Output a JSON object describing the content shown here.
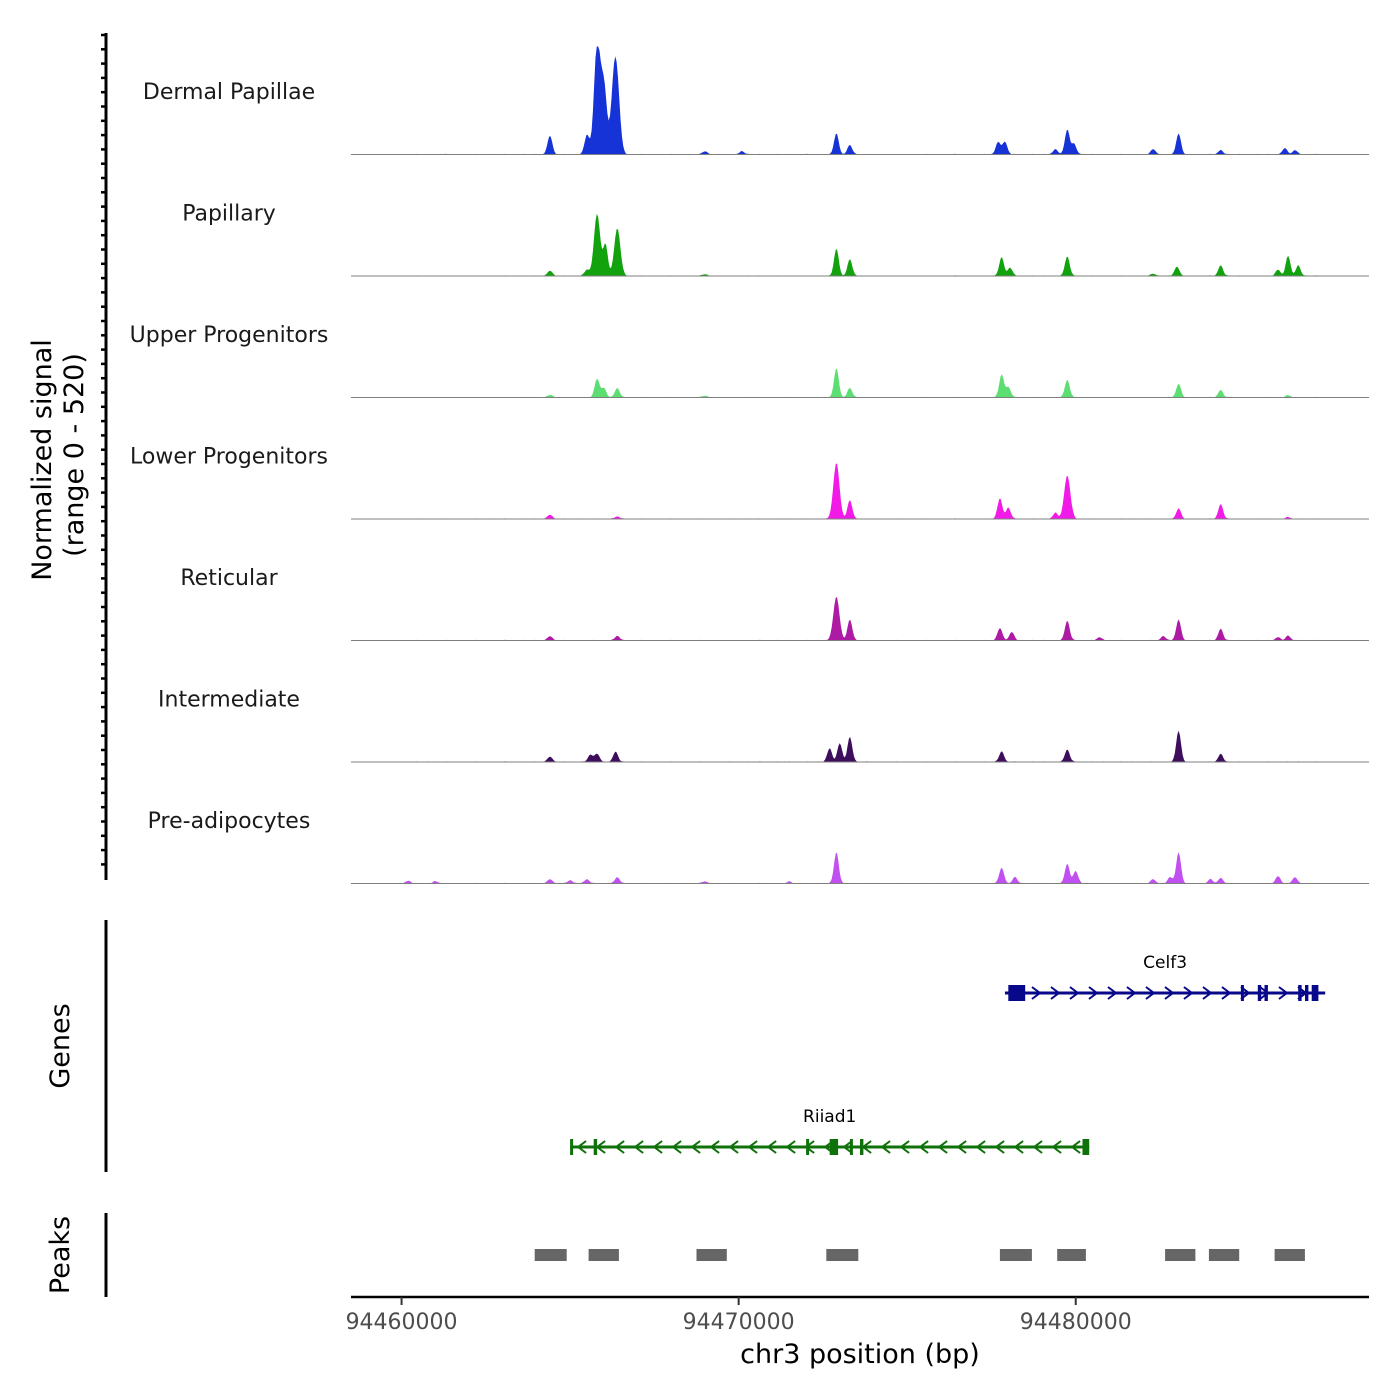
{
  "chart_data": {
    "type": "area",
    "title": "",
    "xlabel": "chr3 position (bp)",
    "ylabel_line1": "Normalized signal",
    "ylabel_line2": "(range 0 - 520)",
    "y_range": [
      0,
      520
    ],
    "xlim": [
      94458500,
      94488700
    ],
    "x_ticks": [
      94460000,
      94470000,
      94480000
    ],
    "x_tick_labels": [
      "94460000",
      "94470000",
      "94480000"
    ],
    "signal_start": 94460000,
    "signal_end": 94487400,
    "series": [
      {
        "name": "Dermal Papillae",
        "color": "#1533d6",
        "peaks": [
          [
            94464400,
            90
          ],
          [
            94465500,
            95
          ],
          [
            94465800,
            520
          ],
          [
            94466000,
            330
          ],
          [
            94466300,
            300
          ],
          [
            94466400,
            250
          ],
          [
            94469000,
            15
          ],
          [
            94470100,
            15
          ],
          [
            94472900,
            100
          ],
          [
            94473300,
            45
          ],
          [
            94477700,
            60
          ],
          [
            94477900,
            60
          ],
          [
            94479400,
            25
          ],
          [
            94479750,
            120
          ],
          [
            94479950,
            50
          ],
          [
            94482300,
            25
          ],
          [
            94483050,
            100
          ],
          [
            94484300,
            20
          ],
          [
            94486200,
            30
          ],
          [
            94486500,
            20
          ]
        ]
      },
      {
        "name": "Papillary",
        "color": "#12a20e",
        "peaks": [
          [
            94464400,
            25
          ],
          [
            94465500,
            30
          ],
          [
            94465800,
            300
          ],
          [
            94466050,
            150
          ],
          [
            94466400,
            230
          ],
          [
            94469000,
            8
          ],
          [
            94472900,
            130
          ],
          [
            94473300,
            80
          ],
          [
            94477800,
            90
          ],
          [
            94478050,
            40
          ],
          [
            94479750,
            95
          ],
          [
            94482300,
            10
          ],
          [
            94483000,
            45
          ],
          [
            94484300,
            50
          ],
          [
            94486000,
            30
          ],
          [
            94486300,
            95
          ],
          [
            94486600,
            50
          ]
        ]
      },
      {
        "name": "Upper Progenitors",
        "color": "#5cde72",
        "peaks": [
          [
            94464400,
            12
          ],
          [
            94465800,
            90
          ],
          [
            94466000,
            45
          ],
          [
            94466400,
            45
          ],
          [
            94469000,
            8
          ],
          [
            94472900,
            140
          ],
          [
            94473300,
            45
          ],
          [
            94477800,
            110
          ],
          [
            94478000,
            50
          ],
          [
            94479750,
            85
          ],
          [
            94483050,
            65
          ],
          [
            94484300,
            35
          ],
          [
            94486300,
            10
          ]
        ]
      },
      {
        "name": "Lower Progenitors",
        "color": "#f21ae6",
        "peaks": [
          [
            94464400,
            20
          ],
          [
            94466400,
            12
          ],
          [
            94472900,
            270
          ],
          [
            94473300,
            90
          ],
          [
            94477750,
            100
          ],
          [
            94478000,
            55
          ],
          [
            94479400,
            30
          ],
          [
            94479750,
            210
          ],
          [
            94483050,
            50
          ],
          [
            94484300,
            70
          ],
          [
            94486300,
            8
          ]
        ]
      },
      {
        "name": "Reticular",
        "color": "#ad1ba5",
        "peaks": [
          [
            94464400,
            20
          ],
          [
            94466400,
            22
          ],
          [
            94472900,
            210
          ],
          [
            94473300,
            100
          ],
          [
            94477750,
            60
          ],
          [
            94478100,
            40
          ],
          [
            94479750,
            95
          ],
          [
            94480700,
            15
          ],
          [
            94482600,
            20
          ],
          [
            94483050,
            100
          ],
          [
            94484300,
            55
          ],
          [
            94486000,
            15
          ],
          [
            94486300,
            22
          ]
        ]
      },
      {
        "name": "Intermediate",
        "color": "#3e0d5c",
        "peaks": [
          [
            94464400,
            25
          ],
          [
            94465600,
            35
          ],
          [
            94465800,
            40
          ],
          [
            94466350,
            50
          ],
          [
            94472700,
            65
          ],
          [
            94473000,
            90
          ],
          [
            94473300,
            120
          ],
          [
            94477800,
            50
          ],
          [
            94479750,
            60
          ],
          [
            94483050,
            150
          ],
          [
            94484300,
            38
          ]
        ]
      },
      {
        "name": "Pre-adipocytes",
        "color": "#c051f0",
        "peaks": [
          [
            94460200,
            12
          ],
          [
            94461000,
            10
          ],
          [
            94464400,
            20
          ],
          [
            94465000,
            15
          ],
          [
            94465500,
            20
          ],
          [
            94466400,
            30
          ],
          [
            94469000,
            10
          ],
          [
            94471500,
            8
          ],
          [
            94472900,
            150
          ],
          [
            94477800,
            75
          ],
          [
            94478200,
            30
          ],
          [
            94479750,
            95
          ],
          [
            94480000,
            60
          ],
          [
            94482300,
            20
          ],
          [
            94482800,
            30
          ],
          [
            94483050,
            150
          ],
          [
            94484000,
            20
          ],
          [
            94484300,
            25
          ],
          [
            94486000,
            35
          ],
          [
            94486500,
            30
          ]
        ]
      }
    ],
    "genes": [
      {
        "name": "Celf3",
        "color": "#08088a",
        "strand": "+",
        "start": 94477900,
        "end": 94487400,
        "exons": [
          [
            94478000,
            94478500
          ],
          [
            94484900,
            94484980
          ],
          [
            94485400,
            94485500
          ],
          [
            94485600,
            94485700
          ],
          [
            94486600,
            94486700
          ],
          [
            94486800,
            94486900
          ],
          [
            94487000,
            94487200
          ]
        ]
      },
      {
        "name": "Riiad1",
        "color": "#0f7109",
        "strand": "-",
        "start": 94465000,
        "end": 94480400,
        "exons": [
          [
            94465000,
            94465080
          ],
          [
            94465700,
            94465800
          ],
          [
            94472000,
            94472080
          ],
          [
            94472700,
            94472950
          ],
          [
            94473300,
            94473380
          ],
          [
            94473600,
            94473700
          ],
          [
            94480200,
            94480400
          ]
        ]
      }
    ],
    "peaks_track": {
      "color": "#666666",
      "regions": [
        [
          94463950,
          94464900
        ],
        [
          94465550,
          94466450
        ],
        [
          94468750,
          94469650
        ],
        [
          94472600,
          94473550
        ],
        [
          94477750,
          94478700
        ],
        [
          94479450,
          94480300
        ],
        [
          94482650,
          94483550
        ],
        [
          94483950,
          94484850
        ],
        [
          94485900,
          94486800
        ]
      ]
    },
    "panel_labels": {
      "genes": "Genes",
      "peaks": "Peaks"
    }
  }
}
